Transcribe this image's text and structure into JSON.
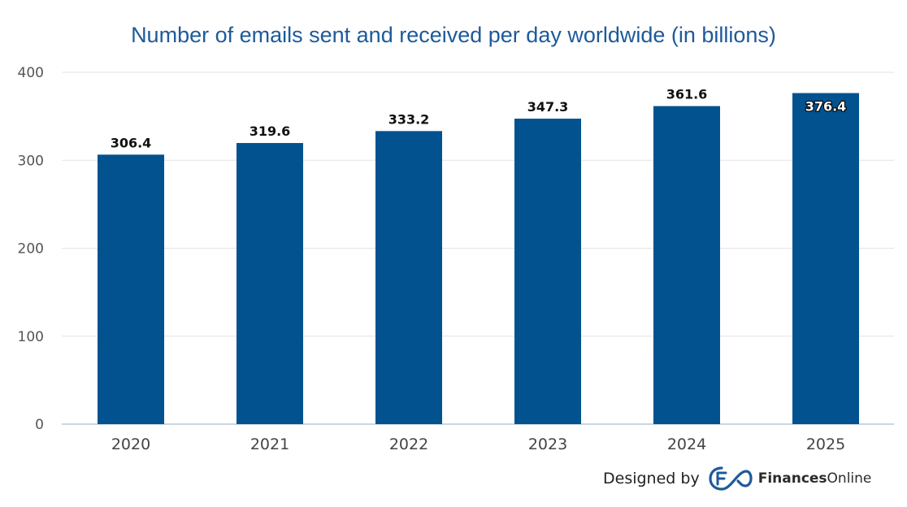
{
  "chart_data": {
    "type": "bar",
    "title": "Number of emails sent and received per day worldwide (in billions)",
    "categories": [
      "2020",
      "2021",
      "2022",
      "2023",
      "2024",
      "2025"
    ],
    "values": [
      306.4,
      319.6,
      333.2,
      347.3,
      361.6,
      376.4
    ],
    "value_labels": [
      "306.4",
      "319.6",
      "333.2",
      "347.3",
      "361.6",
      "376.4"
    ],
    "xlabel": "",
    "ylabel": "",
    "ylim": [
      0,
      400
    ],
    "yticks": [
      0,
      100,
      200,
      300,
      400
    ],
    "grid": true,
    "legend": "none",
    "bar_color": "#02528f"
  },
  "credit": {
    "prefix": "Designed by",
    "brand_bold": "Finances",
    "brand_light": "Online",
    "logo_icon": "financesonline-logo-icon"
  }
}
